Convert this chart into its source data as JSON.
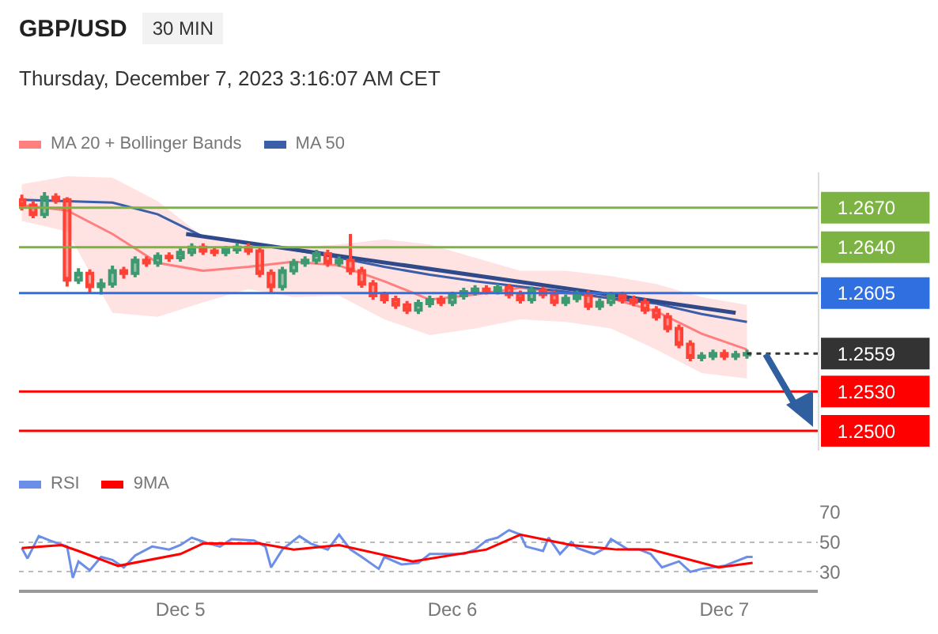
{
  "chart_data": [
    {
      "type": "candlestick",
      "title": "GBP/USD",
      "subtitle": "Thursday, December 7, 2023 3:16:07 AM CET",
      "annotations": [
        "30 MIN"
      ],
      "x": [
        "2023-12-04T10:00",
        "2023-12-04T11:00",
        "2023-12-04T12:00",
        "2023-12-04T13:00",
        "2023-12-04T14:00",
        "2023-12-04T15:00",
        "2023-12-04T16:00",
        "2023-12-04T17:00",
        "2023-12-04T18:00",
        "2023-12-04T19:00",
        "2023-12-04T20:00",
        "2023-12-04T21:00",
        "2023-12-04T22:00",
        "2023-12-04T23:00",
        "2023-12-05T00:00",
        "2023-12-05T01:00",
        "2023-12-05T02:00",
        "2023-12-05T03:00",
        "2023-12-05T04:00",
        "2023-12-05T05:00",
        "2023-12-05T06:00",
        "2023-12-05T07:00",
        "2023-12-05T08:00",
        "2023-12-05T09:00",
        "2023-12-05T10:00",
        "2023-12-05T11:00",
        "2023-12-05T12:00",
        "2023-12-05T13:00",
        "2023-12-05T14:00",
        "2023-12-05T15:00",
        "2023-12-05T16:00",
        "2023-12-05T17:00",
        "2023-12-05T18:00",
        "2023-12-05T19:00",
        "2023-12-05T20:00",
        "2023-12-05T21:00",
        "2023-12-05T22:00",
        "2023-12-05T23:00",
        "2023-12-06T00:00",
        "2023-12-06T01:00",
        "2023-12-06T02:00",
        "2023-12-06T03:00",
        "2023-12-06T04:00",
        "2023-12-06T05:00",
        "2023-12-06T06:00",
        "2023-12-06T07:00",
        "2023-12-06T08:00",
        "2023-12-06T09:00",
        "2023-12-06T10:00",
        "2023-12-06T11:00",
        "2023-12-06T12:00",
        "2023-12-06T13:00",
        "2023-12-06T14:00",
        "2023-12-06T15:00",
        "2023-12-06T16:00",
        "2023-12-06T17:00",
        "2023-12-06T18:00",
        "2023-12-06T19:00",
        "2023-12-06T20:00",
        "2023-12-06T21:00",
        "2023-12-06T22:00",
        "2023-12-06T23:00",
        "2023-12-07T00:00",
        "2023-12-07T01:00",
        "2023-12-07T02:00"
      ],
      "ohlc": [
        [
          1.2676,
          1.268,
          1.2668,
          1.2672
        ],
        [
          1.2672,
          1.2675,
          1.2662,
          1.2665
        ],
        [
          1.2665,
          1.2682,
          1.2662,
          1.2678
        ],
        [
          1.2678,
          1.2681,
          1.2673,
          1.2676
        ],
        [
          1.2676,
          1.2678,
          1.261,
          1.2615
        ],
        [
          1.2615,
          1.2624,
          1.2612,
          1.262
        ],
        [
          1.262,
          1.2623,
          1.2605,
          1.261
        ],
        [
          1.261,
          1.2616,
          1.2604,
          1.2612
        ],
        [
          1.2612,
          1.2626,
          1.2609,
          1.2622
        ],
        [
          1.2622,
          1.2625,
          1.2616,
          1.262
        ],
        [
          1.262,
          1.2633,
          1.2617,
          1.263
        ],
        [
          1.263,
          1.2633,
          1.2625,
          1.2628
        ],
        [
          1.2628,
          1.2636,
          1.2625,
          1.2633
        ],
        [
          1.2633,
          1.2636,
          1.2629,
          1.2632
        ],
        [
          1.2632,
          1.2639,
          1.2629,
          1.2636
        ],
        [
          1.2636,
          1.2643,
          1.2633,
          1.264
        ],
        [
          1.264,
          1.2643,
          1.2634,
          1.2637
        ],
        [
          1.2637,
          1.264,
          1.2633,
          1.2636
        ],
        [
          1.2636,
          1.2641,
          1.2633,
          1.2638
        ],
        [
          1.2638,
          1.2643,
          1.2635,
          1.264
        ],
        [
          1.264,
          1.2643,
          1.2634,
          1.2637
        ],
        [
          1.2637,
          1.264,
          1.2617,
          1.262
        ],
        [
          1.262,
          1.2623,
          1.2605,
          1.261
        ],
        [
          1.261,
          1.2625,
          1.2607,
          1.2622
        ],
        [
          1.2622,
          1.2631,
          1.2619,
          1.2628
        ],
        [
          1.2628,
          1.2633,
          1.2625,
          1.263
        ],
        [
          1.263,
          1.2638,
          1.2627,
          1.2635
        ],
        [
          1.2635,
          1.2638,
          1.2625,
          1.2628
        ],
        [
          1.2628,
          1.2633,
          1.2625,
          1.263
        ],
        [
          1.263,
          1.265,
          1.2619,
          1.2622
        ],
        [
          1.2622,
          1.2625,
          1.2609,
          1.2612
        ],
        [
          1.2612,
          1.2615,
          1.26,
          1.2603
        ],
        [
          1.2603,
          1.2606,
          1.2597,
          1.26
        ],
        [
          1.26,
          1.2603,
          1.2593,
          1.2596
        ],
        [
          1.2596,
          1.2599,
          1.2589,
          1.2592
        ],
        [
          1.2592,
          1.26,
          1.2589,
          1.2597
        ],
        [
          1.2597,
          1.2603,
          1.2594,
          1.26
        ],
        [
          1.26,
          1.2603,
          1.2595,
          1.2598
        ],
        [
          1.2598,
          1.2606,
          1.2595,
          1.2603
        ],
        [
          1.2603,
          1.2609,
          1.26,
          1.2606
        ],
        [
          1.2606,
          1.2611,
          1.2603,
          1.2608
        ],
        [
          1.2608,
          1.2611,
          1.2604,
          1.2607
        ],
        [
          1.2607,
          1.2612,
          1.2604,
          1.2609
        ],
        [
          1.2609,
          1.2612,
          1.2601,
          1.2604
        ],
        [
          1.2604,
          1.2607,
          1.2597,
          1.26
        ],
        [
          1.26,
          1.261,
          1.2597,
          1.2607
        ],
        [
          1.2607,
          1.261,
          1.2601,
          1.2604
        ],
        [
          1.2604,
          1.2607,
          1.2595,
          1.2598
        ],
        [
          1.2598,
          1.2604,
          1.2595,
          1.2601
        ],
        [
          1.2601,
          1.2607,
          1.2598,
          1.2604
        ],
        [
          1.2604,
          1.2607,
          1.2592,
          1.2595
        ],
        [
          1.2595,
          1.2601,
          1.2592,
          1.2598
        ],
        [
          1.2598,
          1.2606,
          1.2595,
          1.2603
        ],
        [
          1.2603,
          1.2606,
          1.2597,
          1.26
        ],
        [
          1.26,
          1.2603,
          1.2595,
          1.2598
        ],
        [
          1.2598,
          1.2601,
          1.2589,
          1.2592
        ],
        [
          1.2592,
          1.2595,
          1.2584,
          1.2587
        ],
        [
          1.2587,
          1.259,
          1.2575,
          1.2578
        ],
        [
          1.2578,
          1.2581,
          1.2563,
          1.2566
        ],
        [
          1.2566,
          1.2569,
          1.2553,
          1.2556
        ],
        [
          1.2556,
          1.256,
          1.2553,
          1.2557
        ],
        [
          1.2557,
          1.2562,
          1.2554,
          1.2559
        ],
        [
          1.2559,
          1.2562,
          1.2554,
          1.2557
        ],
        [
          1.2557,
          1.2561,
          1.2554,
          1.2558
        ],
        [
          1.2558,
          1.2562,
          1.2555,
          1.2559
        ]
      ],
      "series": [
        {
          "type": "line",
          "name": "MA 20 + Bollinger Bands",
          "color": "#ff7f7f",
          "x": [
            "2023-12-04T10:00",
            "2023-12-04T14:00",
            "2023-12-04T18:00",
            "2023-12-04T22:00",
            "2023-12-05T02:00",
            "2023-12-05T06:00",
            "2023-12-05T10:00",
            "2023-12-05T14:00",
            "2023-12-05T18:00",
            "2023-12-05T22:00",
            "2023-12-06T02:00",
            "2023-12-06T06:00",
            "2023-12-06T10:00",
            "2023-12-06T14:00",
            "2023-12-06T18:00",
            "2023-12-06T22:00",
            "2023-12-07T02:00"
          ],
          "values": [
            1.2672,
            1.2668,
            1.265,
            1.2628,
            1.2622,
            1.2625,
            1.2629,
            1.2626,
            1.2614,
            1.26,
            1.2604,
            1.2609,
            1.2605,
            1.2601,
            1.2591,
            1.2574,
            1.2562
          ],
          "upper": [
            1.2688,
            1.2694,
            1.2693,
            1.2675,
            1.2648,
            1.2643,
            1.264,
            1.2642,
            1.2646,
            1.2642,
            1.2632,
            1.2622,
            1.2622,
            1.2618,
            1.2612,
            1.2602,
            1.2596
          ],
          "lower": [
            1.266,
            1.2652,
            1.259,
            1.2587,
            1.2598,
            1.2608,
            1.2602,
            1.2603,
            1.2585,
            1.2573,
            1.2578,
            1.2585,
            1.2583,
            1.2578,
            1.2562,
            1.2544,
            1.254
          ]
        },
        {
          "type": "line",
          "name": "MA 50",
          "color": "#3b5ea8",
          "x": [
            "2023-12-04T10:00",
            "2023-12-04T14:00",
            "2023-12-04T18:00",
            "2023-12-04T22:00",
            "2023-12-05T02:00",
            "2023-12-05T06:00",
            "2023-12-05T10:00",
            "2023-12-05T14:00",
            "2023-12-05T18:00",
            "2023-12-05T22:00",
            "2023-12-06T02:00",
            "2023-12-06T06:00",
            "2023-12-06T10:00",
            "2023-12-06T14:00",
            "2023-12-06T18:00",
            "2023-12-06T22:00",
            "2023-12-07T02:00"
          ],
          "values": [
            1.2676,
            1.2675,
            1.2674,
            1.2665,
            1.2648,
            1.2643,
            1.2638,
            1.2632,
            1.2625,
            1.2619,
            1.2614,
            1.261,
            1.2606,
            1.2601,
            1.2597,
            1.2589,
            1.2583
          ]
        },
        {
          "type": "line",
          "color": "#2f4a8a",
          "x": [
            "2023-12-05T00:30",
            "2023-12-07T01:00"
          ],
          "values": [
            1.265,
            1.259
          ]
        }
      ],
      "ref_lines": [
        {
          "axis": "y",
          "value": 1.267,
          "color": "#7cb342",
          "line_style": "solid"
        },
        {
          "axis": "y",
          "value": 1.264,
          "color": "#7cb342",
          "line_style": "solid"
        },
        {
          "axis": "y",
          "value": 1.2605,
          "color": "#2f6fe0",
          "line_style": "solid"
        },
        {
          "axis": "y",
          "value": 1.2559,
          "color": "#333333",
          "line_style": "dotted"
        },
        {
          "axis": "y",
          "value": 1.253,
          "color": "#ff0000",
          "line_style": "solid"
        },
        {
          "axis": "y",
          "value": 1.25,
          "color": "#ff0000",
          "line_style": "solid"
        }
      ],
      "yticks": [
        {
          "value": 1.25,
          "label": "1.2500"
        },
        {
          "value": 1.253,
          "label": "1.2530"
        },
        {
          "value": 1.2559,
          "label": "1.2559"
        },
        {
          "value": 1.2605,
          "label": "1.2605"
        },
        {
          "value": 1.264,
          "label": "1.2640"
        },
        {
          "value": 1.267,
          "label": "1.2670"
        }
      ],
      "xlim": [
        "2023-12-04T09:45",
        "2023-12-07T08:15"
      ],
      "ylim": [
        1.2485,
        1.2697
      ],
      "tick_labels": "y",
      "legend": "top left",
      "grid": false
    },
    {
      "type": "line",
      "series": [
        {
          "name": "RSI",
          "color": "#6b8ee8",
          "x": [
            "2023-12-04T10:00",
            "2023-12-04T10:30",
            "2023-12-04T11:30",
            "2023-12-04T12:30",
            "2023-12-04T14:00",
            "2023-12-04T14:30",
            "2023-12-04T15:00",
            "2023-12-04T16:00",
            "2023-12-04T17:00",
            "2023-12-04T18:00",
            "2023-12-04T19:00",
            "2023-12-04T20:00",
            "2023-12-04T21:30",
            "2023-12-04T23:00",
            "2023-12-05T00:00",
            "2023-12-05T01:00",
            "2023-12-05T02:30",
            "2023-12-05T03:30",
            "2023-12-05T04:30",
            "2023-12-05T06:30",
            "2023-12-05T07:30",
            "2023-12-05T08:00",
            "2023-12-05T09:00",
            "2023-12-05T10:30",
            "2023-12-05T11:30",
            "2023-12-05T13:00",
            "2023-12-05T14:00",
            "2023-12-05T15:00",
            "2023-12-05T16:00",
            "2023-12-05T17:30",
            "2023-12-05T18:00",
            "2023-12-05T19:30",
            "2023-12-05T21:00",
            "2023-12-05T22:00",
            "2023-12-05T23:30",
            "2023-12-06T01:00",
            "2023-12-06T02:00",
            "2023-12-06T03:00",
            "2023-12-06T04:00",
            "2023-12-06T05:00",
            "2023-12-06T06:00",
            "2023-12-06T06:30",
            "2023-12-06T08:00",
            "2023-12-06T08:30",
            "2023-12-06T09:30",
            "2023-12-06T10:30",
            "2023-12-06T11:00",
            "2023-12-06T12:30",
            "2023-12-06T13:30",
            "2023-12-06T14:00",
            "2023-12-06T15:30",
            "2023-12-06T16:30",
            "2023-12-06T17:30",
            "2023-12-06T18:30",
            "2023-12-06T20:00",
            "2023-12-06T21:00",
            "2023-12-06T22:00",
            "2023-12-06T23:00",
            "2023-12-07T00:00",
            "2023-12-07T01:00",
            "2023-12-07T02:00",
            "2023-12-07T02:30"
          ],
          "values": [
            46,
            39,
            54,
            51,
            47,
            26,
            37,
            31,
            40,
            38,
            33,
            41,
            47,
            45,
            48,
            53,
            49,
            47,
            52,
            51,
            47,
            33,
            45,
            54,
            49,
            45,
            55,
            45,
            40,
            32,
            40,
            35,
            36,
            42,
            42,
            42,
            45,
            51,
            53,
            58,
            55,
            47,
            44,
            53,
            42,
            50,
            46,
            42,
            46,
            52,
            45,
            45,
            42,
            33,
            37,
            30,
            32,
            33,
            34,
            37,
            40,
            40
          ]
        },
        {
          "name": "9MA",
          "color": "#ff0000",
          "x": [
            "2023-12-04T10:00",
            "2023-12-04T13:30",
            "2023-12-04T15:00",
            "2023-12-04T18:30",
            "2023-12-05T00:00",
            "2023-12-05T02:00",
            "2023-12-05T07:00",
            "2023-12-05T10:00",
            "2023-12-05T14:00",
            "2023-12-05T20:30",
            "2023-12-06T03:00",
            "2023-12-06T06:00",
            "2023-12-06T10:30",
            "2023-12-06T14:30",
            "2023-12-06T17:30",
            "2023-12-06T23:30",
            "2023-12-07T02:30"
          ],
          "values": [
            46,
            48,
            44,
            34,
            42,
            49,
            49,
            45,
            48,
            37,
            45,
            55,
            48,
            45,
            45,
            33,
            36
          ]
        }
      ],
      "xlim": [
        "2023-12-04T09:45",
        "2023-12-07T08:15"
      ],
      "xticks": [
        {
          "value": "2023-12-05",
          "label": "Dec 5"
        },
        {
          "value": "2023-12-06",
          "label": "Dec 6"
        },
        {
          "value": "2023-12-07",
          "label": "Dec 7"
        }
      ],
      "ylim": [
        18,
        70
      ],
      "yticks": [
        30,
        50,
        70
      ],
      "grid": "y",
      "legend": "top left"
    }
  ]
}
